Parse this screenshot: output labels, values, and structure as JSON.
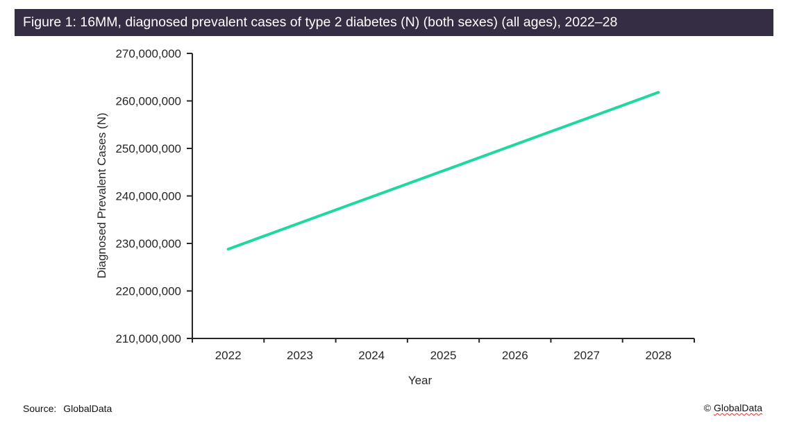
{
  "header": {
    "title": "Figure 1: 16MM, diagnosed prevalent cases of type 2 diabetes (N) (both sexes) (all ages), 2022–28",
    "bar_color": "#352d43"
  },
  "chart_data": {
    "type": "line",
    "categories": [
      "2022",
      "2023",
      "2024",
      "2025",
      "2026",
      "2027",
      "2028"
    ],
    "series": [
      {
        "name": "Diagnosed prevalent cases of type 2 diabetes",
        "values": [
          228800000,
          234300000,
          239800000,
          245300000,
          250800000,
          256300000,
          261800000
        ]
      }
    ],
    "xlabel": "Year",
    "ylabel": "Diagnosed Prevalent Cases (N)",
    "ylim": [
      210000000,
      270000000
    ],
    "ytick_step": 10000000,
    "ytick_labels": [
      "210,000,000",
      "220,000,000",
      "230,000,000",
      "240,000,000",
      "250,000,000",
      "260,000,000",
      "270,000,000"
    ],
    "line_color": "#1fd7a1",
    "axis_color": "#262626",
    "grid": false,
    "legend": "none"
  },
  "footer": {
    "source_label": "Source:",
    "source_value": "GlobalData",
    "copyright_symbol": "©",
    "copyright_brand": "GlobalData"
  }
}
